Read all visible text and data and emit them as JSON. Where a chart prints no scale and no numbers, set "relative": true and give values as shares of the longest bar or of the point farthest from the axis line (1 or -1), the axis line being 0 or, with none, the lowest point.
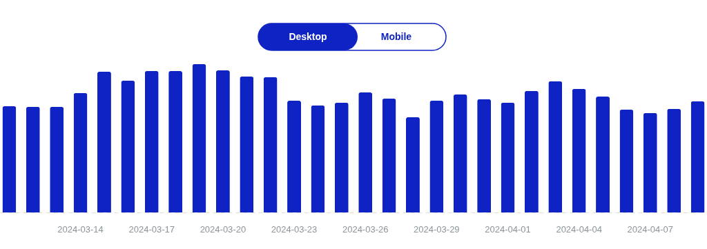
{
  "chart_data": {
    "type": "bar",
    "relative": true,
    "color": "#0f23c4",
    "categories": [
      null,
      null,
      null,
      "2024-03-14",
      null,
      null,
      "2024-03-17",
      null,
      null,
      "2024-03-20",
      null,
      null,
      "2024-03-23",
      null,
      null,
      "2024-03-26",
      null,
      null,
      "2024-03-29",
      null,
      null,
      "2024-04-01",
      null,
      null,
      "2024-04-04",
      null,
      null,
      "2024-04-07",
      null,
      null
    ],
    "values": [
      0.716,
      0.712,
      0.712,
      0.805,
      0.949,
      0.888,
      0.953,
      0.953,
      1,
      0.958,
      0.916,
      0.912,
      0.753,
      0.721,
      0.74,
      0.809,
      0.767,
      0.642,
      0.753,
      0.795,
      0.763,
      0.74,
      0.819,
      0.884,
      0.833,
      0.781,
      0.693,
      0.67,
      0.698,
      0.749
    ],
    "annotations": [
      "Desktop",
      "Mobile"
    ]
  }
}
